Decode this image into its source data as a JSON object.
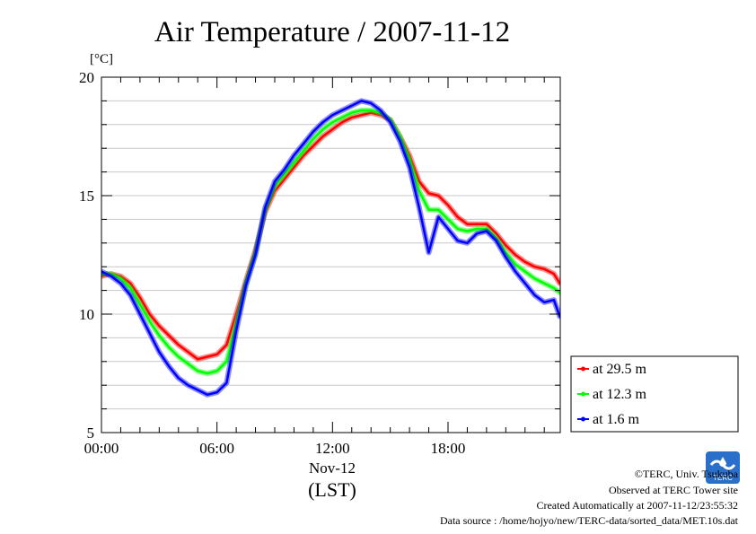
{
  "chart_data": {
    "type": "line",
    "title": "Air Temperature / 2007-11-12",
    "ylabel": "[°C]",
    "xlabel": "Nov-12",
    "xlabel_sub": "(LST)",
    "xlim": [
      0,
      23.83
    ],
    "ylim": [
      5,
      20
    ],
    "grid": true,
    "legend_position": "right",
    "xticks": [
      {
        "value": 0,
        "label": "00:00"
      },
      {
        "value": 6,
        "label": "06:00"
      },
      {
        "value": 12,
        "label": "12:00"
      },
      {
        "value": 18,
        "label": "18:00"
      }
    ],
    "yticks": [
      {
        "value": 5,
        "label": "5"
      },
      {
        "value": 10,
        "label": "10"
      },
      {
        "value": 15,
        "label": "15"
      },
      {
        "value": 20,
        "label": "20"
      }
    ],
    "x": [
      0,
      0.5,
      1,
      1.5,
      2,
      2.5,
      3,
      3.5,
      4,
      4.5,
      5,
      5.5,
      6,
      6.5,
      7,
      7.5,
      8,
      8.5,
      9,
      9.5,
      10,
      10.5,
      11,
      11.5,
      12,
      12.5,
      13,
      13.5,
      14,
      14.5,
      15,
      15.5,
      16,
      16.5,
      17,
      17.5,
      18,
      18.5,
      19,
      19.5,
      20,
      20.5,
      21,
      21.5,
      22,
      22.5,
      23,
      23.5,
      23.8
    ],
    "series": [
      {
        "name": "at 29.5 m",
        "color": "#ff0000",
        "values": [
          11.6,
          11.7,
          11.6,
          11.3,
          10.7,
          10.0,
          9.5,
          9.1,
          8.7,
          8.4,
          8.1,
          8.2,
          8.3,
          8.7,
          10.0,
          11.4,
          12.7,
          14.3,
          15.2,
          15.7,
          16.2,
          16.7,
          17.1,
          17.5,
          17.8,
          18.1,
          18.3,
          18.4,
          18.5,
          18.4,
          18.2,
          17.5,
          16.7,
          15.6,
          15.1,
          15.0,
          14.6,
          14.1,
          13.8,
          13.8,
          13.8,
          13.4,
          12.9,
          12.5,
          12.2,
          12.0,
          11.9,
          11.7,
          11.3
        ]
      },
      {
        "name": "at 12.3 m",
        "color": "#00ff00",
        "values": [
          11.7,
          11.7,
          11.5,
          11.1,
          10.4,
          9.7,
          9.1,
          8.6,
          8.2,
          7.9,
          7.6,
          7.5,
          7.6,
          8.0,
          9.6,
          11.3,
          12.6,
          14.4,
          15.4,
          15.9,
          16.4,
          16.9,
          17.4,
          17.8,
          18.1,
          18.3,
          18.5,
          18.6,
          18.6,
          18.5,
          18.2,
          17.5,
          16.5,
          15.2,
          14.4,
          14.4,
          14.0,
          13.6,
          13.5,
          13.6,
          13.6,
          13.2,
          12.6,
          12.1,
          11.8,
          11.5,
          11.3,
          11.1,
          10.9
        ]
      },
      {
        "name": "at 1.6 m",
        "color": "#0000ff",
        "values": [
          11.8,
          11.6,
          11.3,
          10.8,
          10.0,
          9.2,
          8.4,
          7.8,
          7.3,
          7.0,
          6.8,
          6.6,
          6.7,
          7.1,
          9.3,
          11.2,
          12.5,
          14.5,
          15.6,
          16.1,
          16.7,
          17.2,
          17.7,
          18.1,
          18.4,
          18.6,
          18.8,
          19.0,
          18.9,
          18.6,
          18.1,
          17.3,
          16.2,
          14.5,
          12.6,
          14.1,
          13.6,
          13.1,
          13.0,
          13.4,
          13.5,
          13.1,
          12.4,
          11.8,
          11.3,
          10.8,
          10.5,
          10.6,
          9.9
        ]
      }
    ]
  },
  "credits": {
    "copyright": "©TERC, Univ. Tsukuba",
    "observed": "Observed at TERC Tower site",
    "created": "Created Automatically at 2007-11-12/23:55:32",
    "source": "Data source : /home/hojyo/new/TERC-data/sorted_data/MET.10s.dat",
    "logo_text": "TERC"
  }
}
